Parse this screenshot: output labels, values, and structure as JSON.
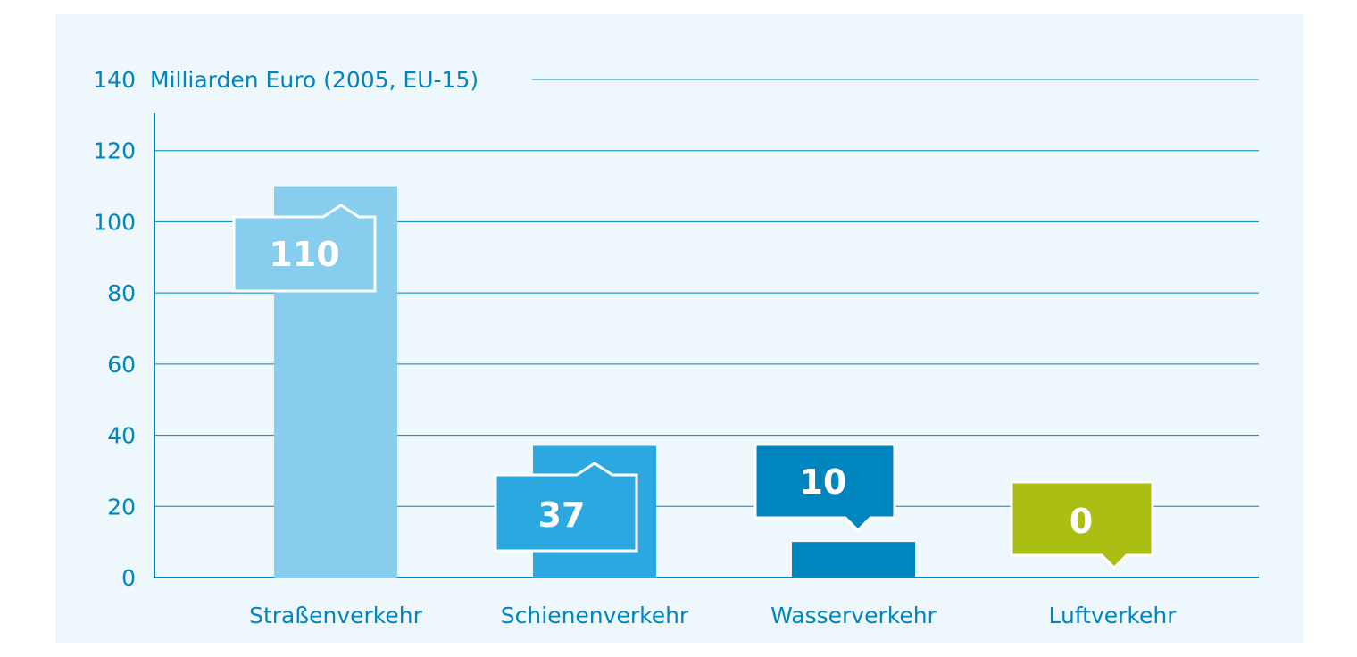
{
  "chart_data": {
    "type": "bar",
    "title": "",
    "ylabel": "Milliarden Euro (2005, EU-15)",
    "xlabel": "",
    "categories": [
      "Straßenverkehr",
      "Schienenverkehr",
      "Wasserverkehr",
      "Luftverkehr"
    ],
    "values": [
      110,
      37,
      10,
      0
    ],
    "data_labels": [
      "110",
      "37",
      "10",
      "0"
    ],
    "ylim": [
      0,
      140
    ],
    "yticks": [
      0,
      20,
      40,
      60,
      80,
      100,
      120,
      140
    ],
    "grid": true,
    "legend": "none",
    "colors": {
      "bars": [
        "#87ceee",
        "#2ca8e1",
        "#0085bf",
        "#aabe14"
      ],
      "axis": "#0085bf",
      "text": "#0085bf",
      "grid": "#0085bf",
      "background": "#eef7fc",
      "label_text": "#ffffff"
    }
  }
}
